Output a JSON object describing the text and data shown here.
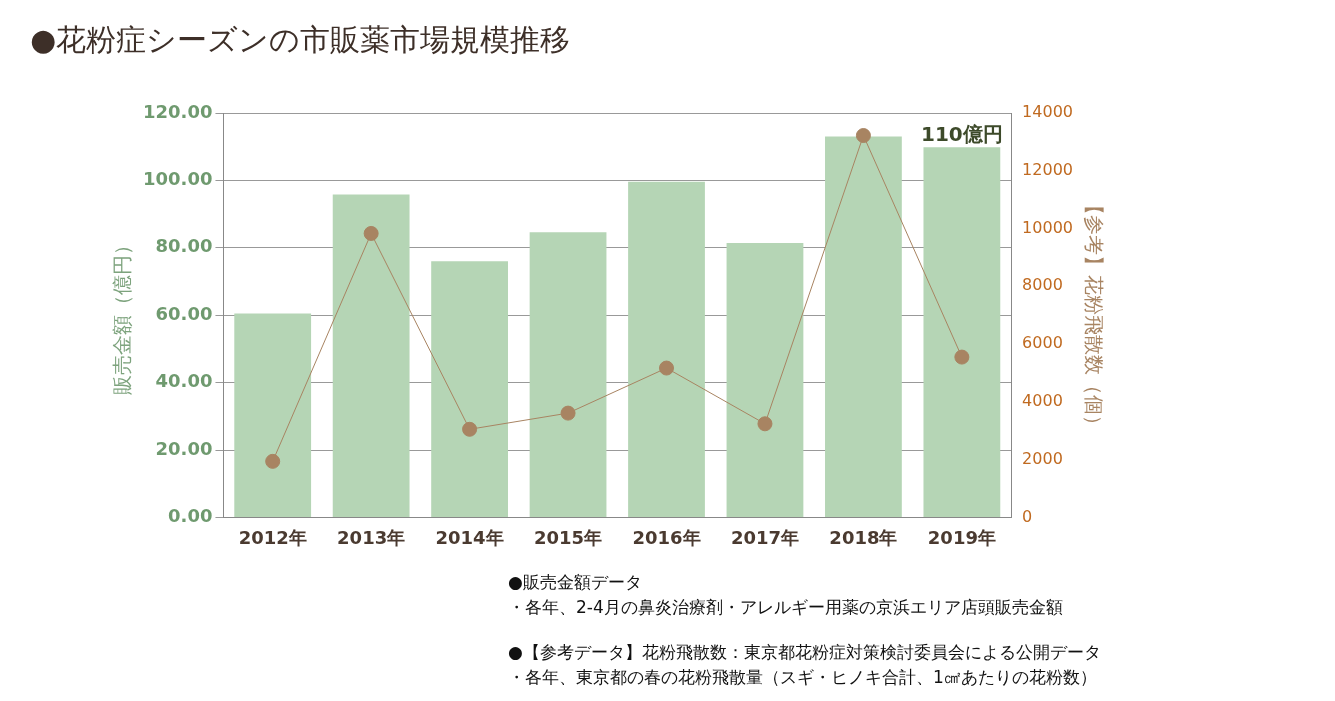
{
  "chart_data": {
    "type": "bar",
    "title": "●花粉症シーズンの市販薬市場規模推移",
    "ylabel": "販売金額（億円）",
    "y2label": "【参考】花粉飛散数（個）",
    "categories": [
      "2012年",
      "2013年",
      "2014年",
      "2015年",
      "2016年",
      "2017年",
      "2018年",
      "2019年"
    ],
    "series": [
      {
        "color": "#b5d5b5",
        "values": [
          60.5,
          95.8,
          76,
          84.6,
          99.6,
          81.4,
          113,
          109.8
        ]
      },
      {
        "type": "line",
        "axis": "y2",
        "color": "#a88462",
        "marker": "circle",
        "values": [
          1940,
          9830,
          3050,
          3610,
          5170,
          3240,
          13220,
          5550
        ]
      }
    ],
    "ylim": [
      0,
      120
    ],
    "yticks": [
      {
        "value": 0,
        "label": "0.00"
      },
      {
        "value": 20,
        "label": "20.00"
      },
      {
        "value": 40,
        "label": "40.00"
      },
      {
        "value": 60,
        "label": "60.00"
      },
      {
        "value": 80,
        "label": "80.00"
      },
      {
        "value": 100,
        "label": "100.00"
      },
      {
        "value": 120,
        "label": "120.00"
      }
    ],
    "y2lim": [
      0,
      14000
    ],
    "y2ticks": [
      0,
      2000,
      4000,
      6000,
      8000,
      10000,
      12000,
      14000
    ],
    "grid": "y",
    "annotations": [
      {
        "text": "110億円",
        "x": "2019年",
        "y": 109.8
      },
      "●販売金額データ",
      "・各年、2-4月の鼻炎治療剤・アレルギー用薬の京浜エリア店頭販売金額",
      "●【参考データ】花粉飛散数：東京都花粉症対策検討委員会による公開データ",
      "・各年、東京都の春の花粉飛散量（スギ・ヒノキ合計、1㎠あたりの花粉数）"
    ]
  }
}
